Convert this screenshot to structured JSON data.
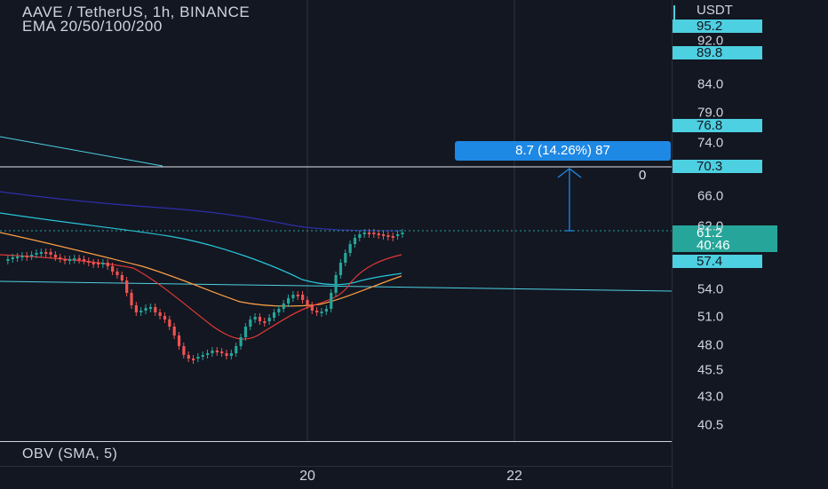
{
  "header": {
    "symbol": "AAVE / TetherUS, 1h, BINANCE",
    "indicator": "EMA 20/50/100/200"
  },
  "price_axis": {
    "currency": "USDT",
    "ticks": [
      "92.0",
      "84.0",
      "79.0",
      "74.0",
      "66.0",
      "62.0",
      "54.0",
      "51.0",
      "48.0",
      "45.5",
      "43.0",
      "40.5"
    ],
    "tags": {
      "top": "95.2",
      "tag_898": "89.8",
      "tag_768": "76.8",
      "tag_703": "70.3",
      "tag_574": "57.4"
    },
    "current_price": "61.2",
    "countdown": "40:46"
  },
  "measure": {
    "label": "8.7 (14.26%) 87",
    "zero_label": "0"
  },
  "obv": {
    "label": "OBV (SMA, 5)"
  },
  "time_axis": {
    "labels": [
      "20",
      "22"
    ]
  },
  "colors": {
    "bg": "#131722",
    "up": "#26a69a",
    "down": "#ef5350",
    "cyan_tag": "#4dd0e1",
    "current_tag": "#26a69a",
    "measure": "#1e88e5"
  }
}
